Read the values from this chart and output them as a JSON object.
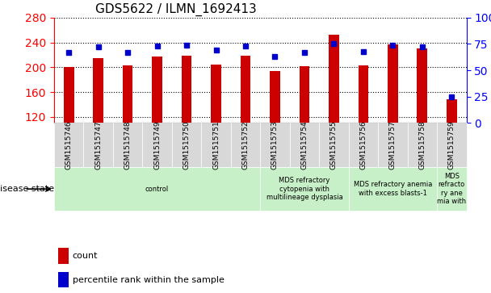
{
  "title": "GDS5622 / ILMN_1692413",
  "samples": [
    "GSM1515746",
    "GSM1515747",
    "GSM1515748",
    "GSM1515749",
    "GSM1515750",
    "GSM1515751",
    "GSM1515752",
    "GSM1515753",
    "GSM1515754",
    "GSM1515755",
    "GSM1515756",
    "GSM1515757",
    "GSM1515758",
    "GSM1515759"
  ],
  "counts": [
    201,
    215,
    203,
    217,
    219,
    204,
    219,
    194,
    202,
    253,
    203,
    237,
    230,
    148
  ],
  "percentiles": [
    67,
    72,
    67,
    73,
    74,
    69,
    73,
    63,
    67,
    75,
    68,
    74,
    72,
    25
  ],
  "ylim_left": [
    110,
    280
  ],
  "ylim_right": [
    0,
    100
  ],
  "yticks_left": [
    120,
    160,
    200,
    240,
    280
  ],
  "yticks_right": [
    0,
    25,
    50,
    75,
    100
  ],
  "bar_color": "#cc0000",
  "marker_color": "#0000cc",
  "background_color": "#f0f0f0",
  "disease_groups": [
    {
      "label": "control",
      "start": 0,
      "end": 7,
      "color": "#c8f0c8"
    },
    {
      "label": "MDS refractory\ncytopenia with\nmultilineage dysplasia",
      "start": 7,
      "end": 10,
      "color": "#c8f0c8"
    },
    {
      "label": "MDS refractory anemia\nwith excess blasts-1",
      "start": 10,
      "end": 13,
      "color": "#c8f0c8"
    },
    {
      "label": "MDS\nrefracto\nry ane\nmia with",
      "start": 13,
      "end": 14,
      "color": "#c8f0c8"
    }
  ],
  "legend_count_label": "count",
  "legend_percentile_label": "percentile rank within the sample",
  "disease_state_label": "disease state"
}
